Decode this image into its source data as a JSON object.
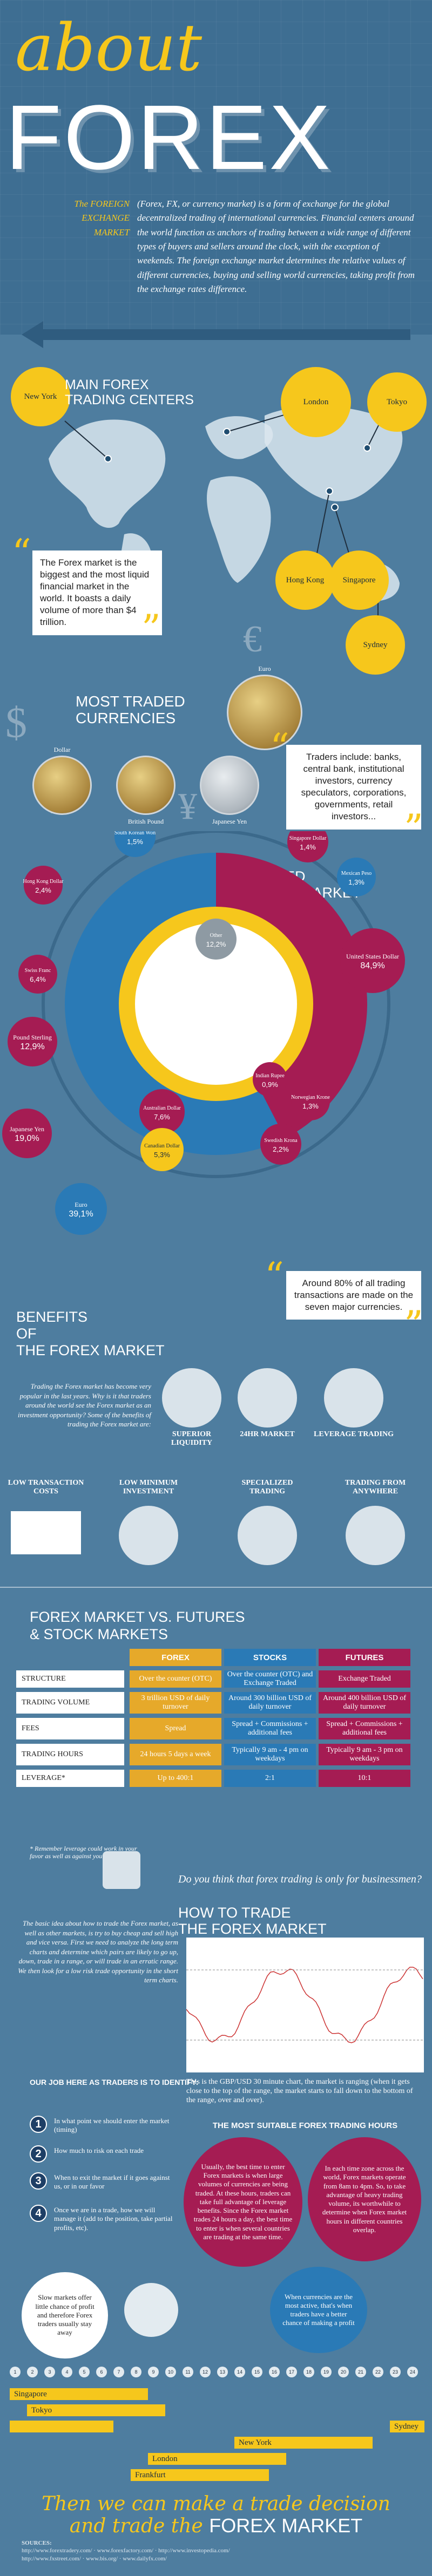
{
  "header": {
    "about": "about",
    "forex": "FOREX",
    "intro_label": "The FOREIGN EXCHANGE MARKET",
    "intro_label_lines": [
      "The FOREIGN",
      "EXCHANGE",
      "MARKET"
    ],
    "intro_text": "(Forex, FX, or currency market) is a form of exchange for the global decentralized trading of international currencies. Financial centers around the world function as anchors of trading between a wide range of different types of buyers and sellers around the clock, with the exception of weekends. The foreign exchange market determines the relative values of different currencies, buying and selling world currencies, taking profit from the exchange rates difference."
  },
  "centers": {
    "title_line1": "MAIN FOREX",
    "title_line2": "TRADING CENTERS",
    "cities": [
      "New York",
      "London",
      "Tokyo",
      "Hong Kong",
      "Singapore",
      "Sydney"
    ],
    "quote": "The Forex market is the biggest and the most liquid financial market in the world. It boasts a daily volume of more than $4 trillion."
  },
  "currencies": {
    "title_line1": "MOST TRADED",
    "title_line2": "CURRENCIES",
    "coins": [
      "Euro",
      "Dollar",
      "British Pound",
      "Japanese Yen"
    ],
    "quote": "Traders include: banks, central bank, institutional investors, currency speculators, corporations, governments, retail investors..."
  },
  "market": {
    "title_line1": "MOST TRADED",
    "title_line2": "CURRENCIES MARKET",
    "quote": "Around 80% of all trading transactions are made on the seven major currencies."
  },
  "chart_data": {
    "type": "pie",
    "categories": [
      "Euro",
      "United States Dollar",
      "Japanese Yen",
      "Pound Sterling",
      "Australian Dollar",
      "Swiss Franc",
      "Canadian Dollar",
      "Hong Kong Dollar",
      "Swedish Krona",
      "New Zealand Dollar",
      "South Korean Won",
      "Singapore Dollar",
      "Norwegian Krone",
      "Mexican Peso",
      "Indian Rupee",
      "Other"
    ],
    "values": [
      39.1,
      84.9,
      19.0,
      12.9,
      7.6,
      6.4,
      5.3,
      2.4,
      2.2,
      1.6,
      1.5,
      1.4,
      1.3,
      1.3,
      0.9,
      12.2
    ],
    "labels": [
      "39,1%",
      "84,9%",
      "19,0%",
      "12,9%",
      "7,6%",
      "6,4%",
      "5,3%",
      "2,4%",
      "2,2%",
      "1,6%",
      "1,5%",
      "1,4%",
      "1,3%",
      "1,3%",
      "0,9%",
      "12,2%"
    ],
    "colors": {
      "euro": "#2a7ab6",
      "usd": "#a51c53",
      "yen": "#a51c53",
      "gbp": "#a51c53",
      "aud": "#a51c53",
      "chf": "#a51c53",
      "cad": "#f6c71c",
      "other": "#8e9aa3",
      "ring": "#f6c71c"
    }
  },
  "benefits": {
    "title_line1": "BENEFITS",
    "title_line2": "OF",
    "title_line3": "THE FOREX MARKET",
    "text": "Trading the Forex market has become very popular in the last years. Why is it that traders around the world see the Forex market as an investment opportunity? Some of the benefits of trading the Forex market are:",
    "items": [
      "SUPERIOR LIQUIDITY",
      "24HR MARKET",
      "LEVERAGE TRADING",
      "LOW TRANSACTION COSTS",
      "LOW MINIMUM INVESTMENT",
      "SPECIALIZED TRADING",
      "TRADING FROM ANYWHERE"
    ]
  },
  "comparison": {
    "title_line1": "FOREX MARKET VS. FUTURES",
    "title_line2": "& STOCK MARKETS",
    "headers": [
      "FOREX",
      "STOCKS",
      "FUTURES"
    ],
    "rows": [
      {
        "label": "STRUCTURE",
        "forex": "Over the counter (OTC)",
        "stocks": "Over the counter (OTC) and Exchange Traded",
        "futures": "Exchange Traded"
      },
      {
        "label": "TRADING VOLUME",
        "forex": "3 trillion USD of daily turnover",
        "stocks": "Around 300 billion USD of daily turnover",
        "futures": "Around 400 billion USD of daily turnover"
      },
      {
        "label": "FEES",
        "forex": "Spread",
        "stocks": "Spread + Commissions + additional fees",
        "futures": "Spread + Commissions + additional fees"
      },
      {
        "label": "TRADING HOURS",
        "forex": "24 hours 5 days a week",
        "stocks": "Typically 9 am - 4 pm on weekdays",
        "futures": "Typically 9 am - 3 pm on weekdays"
      },
      {
        "label": "LEVERAGE*",
        "forex": "Up to 400:1",
        "stocks": "2:1",
        "futures": "10:1"
      }
    ],
    "note": "* Remember leverage could work in your favor as well as against you"
  },
  "how": {
    "question": "Do you think that forex trading is only for businessmen?",
    "title_line1": "HOW TO TRADE",
    "title_line2": "THE FOREX MARKET",
    "text": "The basic idea about how to trade the Forex market, as well as other markets, is try to buy cheap and sell high and vice versa. First we need to analyze the long term charts and determine which pairs are likely to go up, down, trade in a range, or will trade in an erratic range. We then look for a low risk trade opportunity in the short term charts.",
    "job_title": "OUR JOB HERE AS TRADERS IS TO IDENTIFY:",
    "steps": [
      {
        "num": "1",
        "text": "In what point we should enter the market (timing)"
      },
      {
        "num": "2",
        "text": "How much to risk on each trade"
      },
      {
        "num": "3",
        "text": "When to exit the market if it goes against us, or in our favor"
      },
      {
        "num": "4",
        "text": "Once we are in a trade, how we will manage it (add to the position, take partial profits, etc)."
      }
    ],
    "chart_note": "This is the GBP/USD 30 minute chart, the market is ranging (when it gets close to the top of the range, the market starts to fall down to the bottom of the range, over and over).",
    "suitable_title": "THE MOST SUITABLE FOREX TRADING HOURS",
    "blob1": "Usually, the best time to enter Forex markets is when large volumes of currencies are being traded. At these hours, traders can take full advantage of leverage benefits. Since the Forex market trades 24 hours a day, the best time to enter is when several countries are trading at the same time.",
    "blob2": "In each time zone across the world, Forex markets operate from 8am to 4pm. So, to take advantage of heavy trading volume, its worthwhile to determine when Forex market hours in different countries overlap.",
    "blob3": "When currencies are the most active, that's when traders have a better chance of making a profit",
    "slow": "Slow markets offer little chance of profit and therefore Forex traders usually stay away"
  },
  "timeline": {
    "hours": [
      "1",
      "2",
      "3",
      "4",
      "5",
      "6",
      "7",
      "8",
      "9",
      "10",
      "11",
      "12",
      "13",
      "14",
      "15",
      "16",
      "17",
      "18",
      "19",
      "20",
      "21",
      "22",
      "23",
      "24"
    ],
    "sessions": [
      {
        "name": "Singapore",
        "start": 0,
        "end": 8,
        "color": "#f6c71c"
      },
      {
        "name": "Tokyo",
        "start": 1,
        "end": 9,
        "color": "#f6c71c"
      },
      {
        "name": "Sydney",
        "start": 22,
        "end": 6,
        "color": "#f6c71c"
      },
      {
        "name": "New York",
        "start": 13,
        "end": 21,
        "color": "#f6c71c"
      },
      {
        "name": "London",
        "start": 8,
        "end": 16,
        "color": "#f6c71c"
      },
      {
        "name": "Frankfurt",
        "start": 7,
        "end": 15,
        "color": "#f6c71c"
      }
    ]
  },
  "conclusion": {
    "line1": "Then we can make a trade decision",
    "line2_pre": "and trade the",
    "line2_post": "FOREX MARKET"
  },
  "sources": {
    "title": "SOURCES:",
    "list": [
      "http://www.forextradery.com/",
      "www.forexfactory.com/",
      "http://www.investopedia.com/",
      "http://www.fxstreet.com/",
      "www.bis.org/",
      "www.dailyfx.com/"
    ]
  }
}
